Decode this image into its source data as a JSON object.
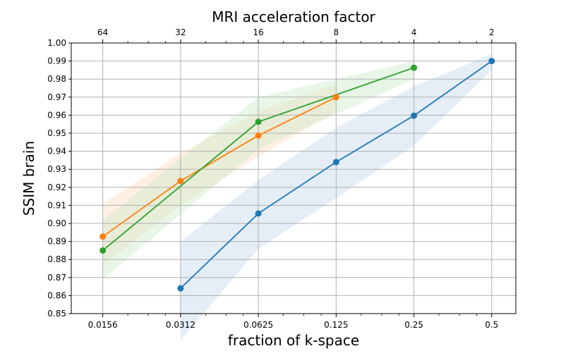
{
  "chart_data": {
    "type": "line",
    "xlabel": "fraction of k-space",
    "x2label": "MRI acceleration factor",
    "ylabel": "SSIM brain",
    "xscale": "log2",
    "xlim": [
      0.0118,
      0.62
    ],
    "ylim": [
      0.85,
      1.0
    ],
    "x_ticks": [
      0.015625,
      0.03125,
      0.0625,
      0.125,
      0.25,
      0.5
    ],
    "x_tick_labels": [
      "0.0156",
      "0.0312",
      "0.0625",
      "0.125",
      "0.25",
      "0.5"
    ],
    "x2_tick_labels": [
      "64",
      "32",
      "16",
      "8",
      "4",
      "2"
    ],
    "y_ticks": [
      0.85,
      0.86,
      0.87,
      0.88,
      0.89,
      0.9,
      0.91,
      0.92,
      0.93,
      0.94,
      0.95,
      0.96,
      0.97,
      0.98,
      0.99,
      1.0
    ],
    "y_tick_labels": [
      "0.85",
      "0.86",
      "0.87",
      "0.88",
      "0.89",
      "0.90",
      "0.91",
      "0.92",
      "0.93",
      "0.94",
      "0.95",
      "0.96",
      "0.97",
      "0.98",
      "0.99",
      "1.00"
    ],
    "grid": true,
    "series": [
      {
        "color": "#1f77b4",
        "band_color": "#c6d9ee",
        "x": [
          0.03125,
          0.0625,
          0.125,
          0.25,
          0.5
        ],
        "y": [
          0.864,
          0.9055,
          0.934,
          0.9597,
          0.99
        ],
        "band_x": [
          0.03125,
          0.0625,
          0.125,
          0.25,
          0.5
        ],
        "band_low": [
          0.835,
          0.886,
          0.914,
          0.943,
          0.985
        ],
        "band_high": [
          0.89,
          0.924,
          0.953,
          0.976,
          0.994
        ]
      },
      {
        "color": "#ff7f0e",
        "band_color": "#ffdcbf",
        "x": [
          0.015625,
          0.03125,
          0.0625,
          0.125
        ],
        "y": [
          0.8927,
          0.9235,
          0.9487,
          0.97
        ],
        "band_x": [
          0.015625,
          0.03125,
          0.0625,
          0.125
        ],
        "band_low": [
          0.877,
          0.91,
          0.937,
          0.962
        ],
        "band_high": [
          0.911,
          0.939,
          0.962,
          0.977
        ]
      },
      {
        "color": "#2ca02c",
        "band_color": "#cdebcd",
        "x": [
          0.015625,
          0.0625,
          0.25
        ],
        "y": [
          0.885,
          0.9563,
          0.9863
        ],
        "band_x": [
          0.015625,
          0.0625,
          0.25
        ],
        "band_low": [
          0.869,
          0.941,
          0.98
        ],
        "band_high": [
          0.902,
          0.97,
          0.99
        ]
      }
    ]
  }
}
